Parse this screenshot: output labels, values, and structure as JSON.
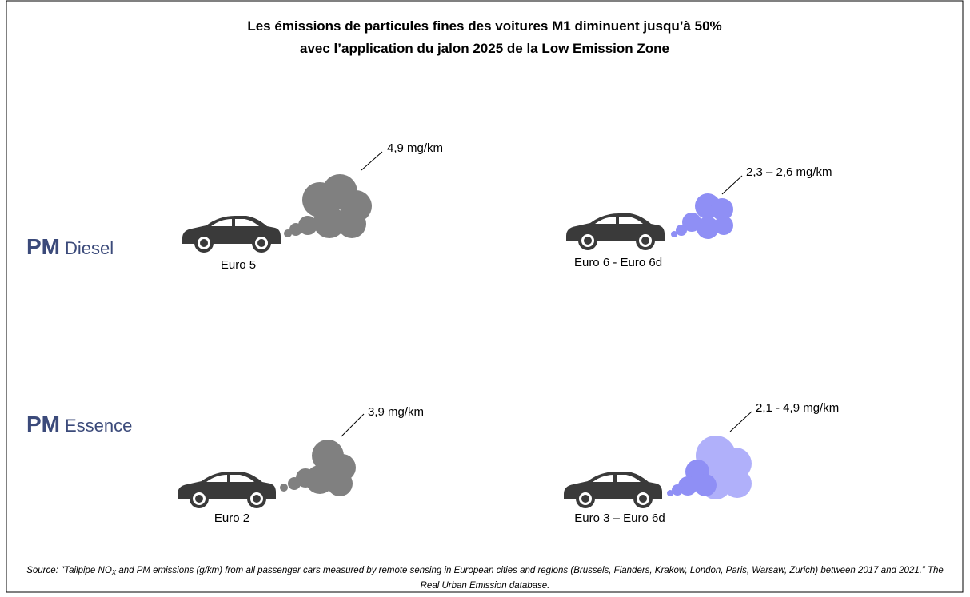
{
  "title": [
    "Les émissions de particules fines des voitures M1 diminuent jusqu’à 50%",
    "avec l’application du jalon 2025 de la Low Emission Zone"
  ],
  "rows": [
    {
      "label": "PM",
      "fuel": "Diesel",
      "cars": [
        {
          "label": "Euro 5",
          "emission": "4,9 mg/km"
        },
        {
          "label": "Euro 6 - Euro 6d",
          "emission": "2,3 – 2,6 mg/km"
        }
      ]
    },
    {
      "label": "PM",
      "fuel": "Essence",
      "cars": [
        {
          "label": "Euro 2",
          "emission": "3,9 mg/km"
        },
        {
          "label": "Euro 3 – Euro 6d",
          "emission": "2,1 - 4,9 mg/km"
        }
      ]
    }
  ],
  "source": {
    "prefix": "Source: \"Tailpipe NO",
    "subscript": "X",
    "text": " and PM emissions (g/km) from all passenger cars measured by remote sensing in European cities and regions (Brussels, Flanders, Krakow, London, Paris, Warsaw, Zurich) between 2017 and 2021.” The Real Urban Emission database."
  }
}
